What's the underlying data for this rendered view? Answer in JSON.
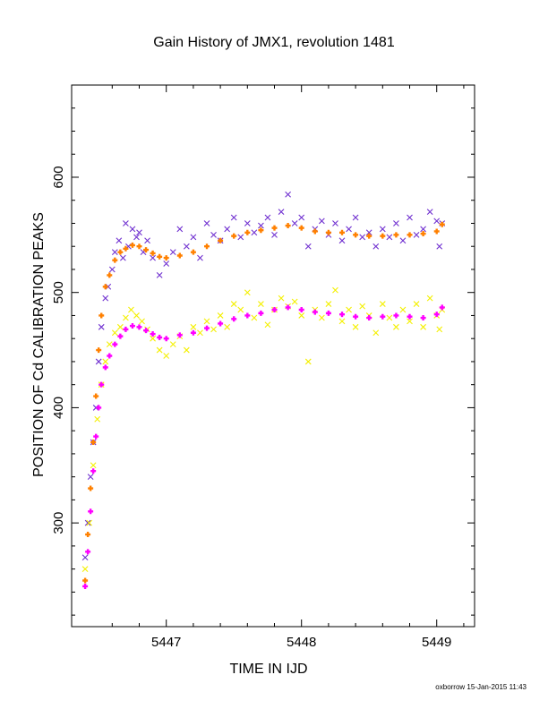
{
  "chart_data": {
    "type": "scatter",
    "title": "Gain History of JMX1, revolution 1481",
    "xlabel": "TIME IN IJD",
    "ylabel": "POSITION OF Cd CALIBRATION PEAKS",
    "xlim": [
      5446.3,
      5449.28
    ],
    "ylim": [
      210,
      680
    ],
    "x_ticks": [
      {
        "value": 5447,
        "label": "5447"
      },
      {
        "value": 5448,
        "label": "5448"
      },
      {
        "value": 5449,
        "label": "5449"
      }
    ],
    "y_ticks": [
      {
        "value": 300,
        "label": "300"
      },
      {
        "value": 400,
        "label": "400"
      },
      {
        "value": 500,
        "label": "500"
      },
      {
        "value": 600,
        "label": "600"
      }
    ],
    "grid": false,
    "series": [
      {
        "marker": "x",
        "color": "#7030d0",
        "values": [
          [
            5446.4,
            270
          ],
          [
            5446.42,
            300
          ],
          [
            5446.44,
            340
          ],
          [
            5446.46,
            370
          ],
          [
            5446.48,
            400
          ],
          [
            5446.5,
            440
          ],
          [
            5446.52,
            470
          ],
          [
            5446.55,
            495
          ],
          [
            5446.57,
            505
          ],
          [
            5446.6,
            520
          ],
          [
            5446.62,
            535
          ],
          [
            5446.65,
            545
          ],
          [
            5446.68,
            530
          ],
          [
            5446.7,
            560
          ],
          [
            5446.72,
            540
          ],
          [
            5446.75,
            555
          ],
          [
            5446.78,
            548
          ],
          [
            5446.8,
            552
          ],
          [
            5446.83,
            535
          ],
          [
            5446.86,
            545
          ],
          [
            5446.9,
            530
          ],
          [
            5446.95,
            515
          ],
          [
            5447.0,
            525
          ],
          [
            5447.05,
            535
          ],
          [
            5447.1,
            555
          ],
          [
            5447.15,
            540
          ],
          [
            5447.2,
            548
          ],
          [
            5447.25,
            530
          ],
          [
            5447.3,
            560
          ],
          [
            5447.35,
            550
          ],
          [
            5447.4,
            545
          ],
          [
            5447.45,
            555
          ],
          [
            5447.5,
            565
          ],
          [
            5447.55,
            548
          ],
          [
            5447.6,
            560
          ],
          [
            5447.65,
            552
          ],
          [
            5447.7,
            558
          ],
          [
            5447.75,
            565
          ],
          [
            5447.8,
            550
          ],
          [
            5447.85,
            570
          ],
          [
            5447.9,
            585
          ],
          [
            5447.95,
            560
          ],
          [
            5448.0,
            565
          ],
          [
            5448.05,
            540
          ],
          [
            5448.1,
            555
          ],
          [
            5448.15,
            562
          ],
          [
            5448.2,
            550
          ],
          [
            5448.25,
            560
          ],
          [
            5448.3,
            545
          ],
          [
            5448.35,
            555
          ],
          [
            5448.4,
            565
          ],
          [
            5448.45,
            548
          ],
          [
            5448.5,
            552
          ],
          [
            5448.55,
            540
          ],
          [
            5448.6,
            555
          ],
          [
            5448.65,
            548
          ],
          [
            5448.7,
            560
          ],
          [
            5448.75,
            545
          ],
          [
            5448.8,
            565
          ],
          [
            5448.85,
            550
          ],
          [
            5448.9,
            555
          ],
          [
            5448.95,
            570
          ],
          [
            5449.0,
            562
          ],
          [
            5449.02,
            540
          ],
          [
            5449.04,
            560
          ]
        ]
      },
      {
        "marker": "x",
        "color": "#f4f000",
        "values": [
          [
            5446.4,
            260
          ],
          [
            5446.43,
            300
          ],
          [
            5446.46,
            350
          ],
          [
            5446.49,
            390
          ],
          [
            5446.52,
            420
          ],
          [
            5446.55,
            440
          ],
          [
            5446.58,
            455
          ],
          [
            5446.62,
            465
          ],
          [
            5446.66,
            470
          ],
          [
            5446.7,
            478
          ],
          [
            5446.74,
            485
          ],
          [
            5446.78,
            480
          ],
          [
            5446.82,
            475
          ],
          [
            5446.86,
            468
          ],
          [
            5446.9,
            460
          ],
          [
            5446.95,
            450
          ],
          [
            5447.0,
            445
          ],
          [
            5447.05,
            455
          ],
          [
            5447.1,
            462
          ],
          [
            5447.15,
            450
          ],
          [
            5447.2,
            470
          ],
          [
            5447.25,
            465
          ],
          [
            5447.3,
            475
          ],
          [
            5447.35,
            468
          ],
          [
            5447.4,
            480
          ],
          [
            5447.45,
            470
          ],
          [
            5447.5,
            490
          ],
          [
            5447.55,
            485
          ],
          [
            5447.6,
            500
          ],
          [
            5447.65,
            478
          ],
          [
            5447.7,
            490
          ],
          [
            5447.75,
            472
          ],
          [
            5447.8,
            485
          ],
          [
            5447.85,
            495
          ],
          [
            5447.9,
            488
          ],
          [
            5447.95,
            492
          ],
          [
            5448.0,
            480
          ],
          [
            5448.05,
            440
          ],
          [
            5448.1,
            485
          ],
          [
            5448.15,
            478
          ],
          [
            5448.2,
            490
          ],
          [
            5448.25,
            502
          ],
          [
            5448.3,
            475
          ],
          [
            5448.35,
            485
          ],
          [
            5448.4,
            470
          ],
          [
            5448.45,
            488
          ],
          [
            5448.5,
            480
          ],
          [
            5448.55,
            465
          ],
          [
            5448.6,
            490
          ],
          [
            5448.65,
            478
          ],
          [
            5448.7,
            470
          ],
          [
            5448.75,
            485
          ],
          [
            5448.8,
            475
          ],
          [
            5448.85,
            490
          ],
          [
            5448.9,
            470
          ],
          [
            5448.95,
            495
          ],
          [
            5449.0,
            480
          ],
          [
            5449.02,
            468
          ],
          [
            5449.04,
            485
          ]
        ]
      },
      {
        "marker": "+",
        "color": "#ff8000",
        "values": [
          [
            5446.4,
            250
          ],
          [
            5446.42,
            290
          ],
          [
            5446.44,
            330
          ],
          [
            5446.46,
            370
          ],
          [
            5446.48,
            410
          ],
          [
            5446.5,
            450
          ],
          [
            5446.52,
            480
          ],
          [
            5446.55,
            505
          ],
          [
            5446.58,
            515
          ],
          [
            5446.62,
            528
          ],
          [
            5446.66,
            535
          ],
          [
            5446.7,
            538
          ],
          [
            5446.75,
            541
          ],
          [
            5446.8,
            540
          ],
          [
            5446.85,
            537
          ],
          [
            5446.9,
            534
          ],
          [
            5446.95,
            531
          ],
          [
            5447.0,
            530
          ],
          [
            5447.1,
            532
          ],
          [
            5447.2,
            535
          ],
          [
            5447.3,
            540
          ],
          [
            5447.4,
            545
          ],
          [
            5447.5,
            549
          ],
          [
            5447.6,
            552
          ],
          [
            5447.7,
            554
          ],
          [
            5447.8,
            556
          ],
          [
            5447.9,
            558
          ],
          [
            5448.0,
            556
          ],
          [
            5448.1,
            553
          ],
          [
            5448.2,
            552
          ],
          [
            5448.3,
            552
          ],
          [
            5448.4,
            550
          ],
          [
            5448.5,
            549
          ],
          [
            5448.6,
            549
          ],
          [
            5448.7,
            550
          ],
          [
            5448.8,
            550
          ],
          [
            5448.9,
            551
          ],
          [
            5449.0,
            553
          ],
          [
            5449.04,
            559
          ]
        ]
      },
      {
        "marker": "+",
        "color": "#ff00ff",
        "values": [
          [
            5446.4,
            245
          ],
          [
            5446.42,
            275
          ],
          [
            5446.44,
            310
          ],
          [
            5446.46,
            345
          ],
          [
            5446.48,
            375
          ],
          [
            5446.5,
            400
          ],
          [
            5446.52,
            420
          ],
          [
            5446.55,
            435
          ],
          [
            5446.58,
            445
          ],
          [
            5446.62,
            455
          ],
          [
            5446.66,
            462
          ],
          [
            5446.7,
            468
          ],
          [
            5446.75,
            471
          ],
          [
            5446.8,
            470
          ],
          [
            5446.85,
            467
          ],
          [
            5446.9,
            464
          ],
          [
            5446.95,
            461
          ],
          [
            5447.0,
            460
          ],
          [
            5447.1,
            463
          ],
          [
            5447.2,
            465
          ],
          [
            5447.3,
            469
          ],
          [
            5447.4,
            473
          ],
          [
            5447.5,
            477
          ],
          [
            5447.6,
            480
          ],
          [
            5447.7,
            482
          ],
          [
            5447.8,
            485
          ],
          [
            5447.9,
            487
          ],
          [
            5448.0,
            485
          ],
          [
            5448.1,
            483
          ],
          [
            5448.2,
            482
          ],
          [
            5448.3,
            481
          ],
          [
            5448.4,
            479
          ],
          [
            5448.5,
            478
          ],
          [
            5448.6,
            479
          ],
          [
            5448.7,
            480
          ],
          [
            5448.8,
            479
          ],
          [
            5448.9,
            478
          ],
          [
            5449.0,
            481
          ],
          [
            5449.04,
            487
          ]
        ]
      }
    ]
  },
  "footer": "oxborrow 15-Jan-2015 11:43"
}
